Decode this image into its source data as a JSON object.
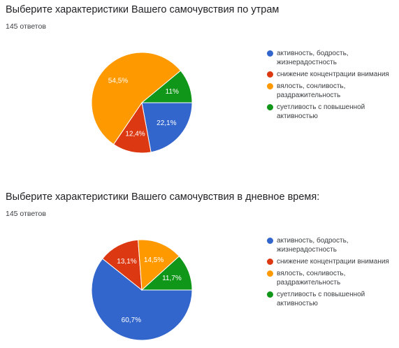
{
  "chart_data": [
    {
      "type": "pie",
      "title": "Выберите характеристики Вашего самочувствия по утрам",
      "subtitle": "145 ответов",
      "legend_position": "right",
      "slices": [
        {
          "label": "активность, бодрость, жизнерадостность",
          "value": 22.1,
          "display": "22,1%",
          "color": "#3366cc"
        },
        {
          "label": "снижение концентрации внимания",
          "value": 12.4,
          "display": "12,4%",
          "color": "#dc3912"
        },
        {
          "label": "вялость, сонливость, раздражительность",
          "value": 54.5,
          "display": "54,5%",
          "color": "#ff9900"
        },
        {
          "label": "суетливость с повышенной активностью",
          "value": 11,
          "display": "11%",
          "color": "#109618"
        }
      ]
    },
    {
      "type": "pie",
      "title": "Выберите характеристики Вашего самочувствия в дневное время:",
      "subtitle": "145 ответов",
      "legend_position": "right",
      "slices": [
        {
          "label": "активность, бодрость, жизнерадостность",
          "value": 60.7,
          "display": "60,7%",
          "color": "#3366cc"
        },
        {
          "label": "снижение концентрации внимания",
          "value": 13.1,
          "display": "13,1%",
          "color": "#dc3912"
        },
        {
          "label": "вялость, сонливость, раздражительность",
          "value": 14.5,
          "display": "14,5%",
          "color": "#ff9900"
        },
        {
          "label": "суетливость с повышенной активностью",
          "value": 11.7,
          "display": "11,7%",
          "color": "#109618"
        }
      ]
    }
  ]
}
